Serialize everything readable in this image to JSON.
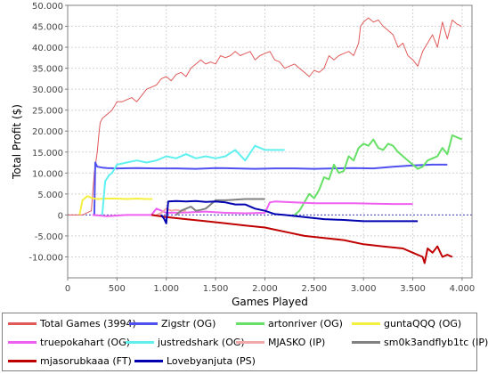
{
  "chart_data": {
    "type": "line",
    "title": "",
    "xlabel": "Games Played",
    "ylabel": "Total Profit ($)",
    "xlim": [
      0,
      4100
    ],
    "ylim": [
      -15000,
      50000
    ],
    "x_ticks": [
      0,
      500,
      1000,
      1500,
      2000,
      2500,
      3000,
      3500,
      4000
    ],
    "x_tick_labels": [
      "0",
      "500",
      "1.000",
      "1.500",
      "2.000",
      "2.500",
      "3.000",
      "3.500",
      "4.000"
    ],
    "y_ticks": [
      -10000,
      -5000,
      0,
      5000,
      10000,
      15000,
      20000,
      25000,
      30000,
      35000,
      40000,
      45000,
      50000
    ],
    "y_tick_labels": [
      "-10.000",
      "-5.000",
      "0",
      "5.000",
      "10.000",
      "15.000",
      "20.000",
      "25.000",
      "30.000",
      "35.000",
      "40.000",
      "45.000",
      "50.000"
    ],
    "grid": true,
    "legend_position": "bottom",
    "series": [
      {
        "name": "Total Games (3994)",
        "color": "#e05a5a",
        "width": 1,
        "x": [
          0,
          150,
          240,
          250,
          270,
          300,
          320,
          330,
          350,
          400,
          450,
          500,
          550,
          600,
          650,
          700,
          800,
          850,
          900,
          950,
          1000,
          1050,
          1100,
          1150,
          1200,
          1250,
          1300,
          1350,
          1400,
          1450,
          1500,
          1550,
          1600,
          1650,
          1700,
          1750,
          1800,
          1850,
          1900,
          1950,
          2000,
          2050,
          2100,
          2150,
          2200,
          2250,
          2300,
          2350,
          2400,
          2450,
          2500,
          2550,
          2600,
          2650,
          2700,
          2750,
          2800,
          2850,
          2900,
          2950,
          2970,
          3000,
          3050,
          3100,
          3150,
          3200,
          3250,
          3300,
          3350,
          3400,
          3450,
          3500,
          3550,
          3600,
          3650,
          3700,
          3750,
          3800,
          3850,
          3900,
          3950,
          3994
        ],
        "y": [
          0,
          0,
          1000,
          4000,
          10000,
          15000,
          20000,
          22000,
          23000,
          24000,
          25000,
          27000,
          27000,
          27500,
          28000,
          27000,
          30000,
          30500,
          31000,
          32500,
          33000,
          32000,
          33500,
          34000,
          33000,
          35000,
          36000,
          37000,
          36000,
          36500,
          36000,
          38000,
          37500,
          38000,
          39000,
          38000,
          38500,
          39000,
          37000,
          38000,
          38500,
          39000,
          37000,
          36500,
          35000,
          35500,
          36000,
          35000,
          34000,
          33000,
          34500,
          34000,
          35000,
          38000,
          37000,
          38000,
          38500,
          39000,
          38000,
          41000,
          45000,
          46000,
          47000,
          46000,
          46500,
          45000,
          44000,
          43000,
          40000,
          41000,
          38000,
          37000,
          35500,
          39000,
          41000,
          43000,
          40000,
          46000,
          42000,
          46500,
          45500,
          45000
        ]
      },
      {
        "name": "Zigstr (OG)",
        "color": "#5050f0",
        "width": 2,
        "x": [
          270,
          280,
          300,
          350,
          400,
          500,
          700,
          900,
          1100,
          1300,
          1500,
          1700,
          1900,
          2100,
          2300,
          2500,
          2700,
          2900,
          3100,
          3300,
          3500,
          3700,
          3850
        ],
        "y": [
          0,
          12500,
          11500,
          11300,
          11200,
          11100,
          11200,
          11100,
          11100,
          11000,
          11200,
          11100,
          11000,
          11100,
          11100,
          11000,
          11100,
          11200,
          11100,
          11500,
          11800,
          12000,
          12000
        ]
      },
      {
        "name": "artonriver (OG)",
        "color": "#66e066",
        "width": 2,
        "x": [
          2300,
          2350,
          2400,
          2450,
          2500,
          2550,
          2600,
          2650,
          2700,
          2750,
          2800,
          2850,
          2900,
          2950,
          3000,
          3050,
          3100,
          3150,
          3200,
          3250,
          3300,
          3350,
          3400,
          3450,
          3500,
          3550,
          3600,
          3650,
          3700,
          3750,
          3800,
          3850,
          3900,
          3950,
          4000
        ],
        "y": [
          0,
          1000,
          3000,
          5000,
          4000,
          6000,
          9000,
          8500,
          12000,
          10000,
          10500,
          14000,
          13000,
          16000,
          17000,
          16500,
          18000,
          16000,
          15500,
          17000,
          16500,
          15000,
          14000,
          13000,
          12000,
          11000,
          11500,
          13000,
          13500,
          14000,
          16000,
          14500,
          19000,
          18500,
          18000
        ]
      },
      {
        "name": "guntaQQQ (OG)",
        "color": "#f5f040",
        "width": 2,
        "x": [
          120,
          150,
          200,
          250,
          300,
          400,
          500,
          600,
          700,
          800,
          860
        ],
        "y": [
          0,
          3500,
          4500,
          4000,
          3800,
          3900,
          3900,
          3800,
          3900,
          3800,
          3800
        ]
      },
      {
        "name": "truepokahart (OG)",
        "color": "#f060f0",
        "width": 2,
        "x": [
          250,
          400,
          600,
          850,
          900,
          1000,
          1200,
          1400,
          1600,
          1800,
          2000,
          2050,
          2100,
          2300,
          2500,
          2700,
          2900,
          3100,
          3300,
          3500
        ],
        "y": [
          0,
          -300,
          0,
          0,
          1500,
          500,
          600,
          800,
          500,
          400,
          500,
          3000,
          3200,
          3000,
          2800,
          2800,
          2800,
          2700,
          2600,
          2600
        ]
      },
      {
        "name": "justredshark (OG)",
        "color": "#60f0f0",
        "width": 2,
        "x": [
          350,
          380,
          420,
          450,
          500,
          600,
          700,
          800,
          900,
          1000,
          1100,
          1200,
          1300,
          1400,
          1500,
          1600,
          1700,
          1800,
          1900,
          2000,
          2100,
          2200
        ],
        "y": [
          0,
          8000,
          9500,
          10000,
          12000,
          12500,
          13000,
          12500,
          13000,
          14000,
          13500,
          14500,
          13500,
          14000,
          13500,
          14000,
          15500,
          13000,
          16500,
          15500,
          15500,
          15500
        ]
      },
      {
        "name": "MJASKO (IP)",
        "color": "#f0a8a8",
        "width": 2,
        "x": [
          900,
          950,
          1000,
          1050,
          1100,
          1150,
          1200
        ],
        "y": [
          0,
          500,
          1500,
          1000,
          1200,
          1000,
          1000
        ]
      },
      {
        "name": "sm0k3andflyb1tc (IP)",
        "color": "#808080",
        "width": 2,
        "x": [
          1100,
          1150,
          1200,
          1250,
          1300,
          1350,
          1400,
          1450,
          1500,
          1600,
          1800,
          2000
        ],
        "y": [
          0,
          1000,
          1500,
          2000,
          1000,
          1200,
          1500,
          2500,
          3500,
          3500,
          3800,
          3800
        ]
      },
      {
        "name": "mjasorubkaaa (FT)",
        "color": "#c00000",
        "width": 2,
        "x": [
          850,
          1000,
          1200,
          1400,
          1600,
          1800,
          2000,
          2100,
          2200,
          2400,
          2600,
          2800,
          3000,
          3200,
          3400,
          3500,
          3600,
          3620,
          3650,
          3700,
          3750,
          3800,
          3850,
          3900
        ],
        "y": [
          0,
          -500,
          -1000,
          -1500,
          -2000,
          -2500,
          -3000,
          -3500,
          -4000,
          -5000,
          -5500,
          -6000,
          -7000,
          -7500,
          -8000,
          -9000,
          -10000,
          -11500,
          -8000,
          -9000,
          -7500,
          -10000,
          -9500,
          -10000
        ]
      },
      {
        "name": "Lovebyanjuta (PS)",
        "color": "#0000b0",
        "width": 2,
        "x": [
          950,
          980,
          1000,
          1020,
          1100,
          1200,
          1300,
          1400,
          1500,
          1600,
          1700,
          1800,
          1900,
          2000,
          2100,
          2200,
          2400,
          2600,
          2800,
          3000,
          3200,
          3400,
          3550
        ],
        "y": [
          0,
          -1000,
          -2000,
          3200,
          3300,
          3200,
          3300,
          3100,
          3200,
          3000,
          2500,
          2500,
          1500,
          1000,
          200,
          0,
          -500,
          -1000,
          -1200,
          -1500,
          -1500,
          -1500,
          -1500
        ]
      }
    ]
  }
}
